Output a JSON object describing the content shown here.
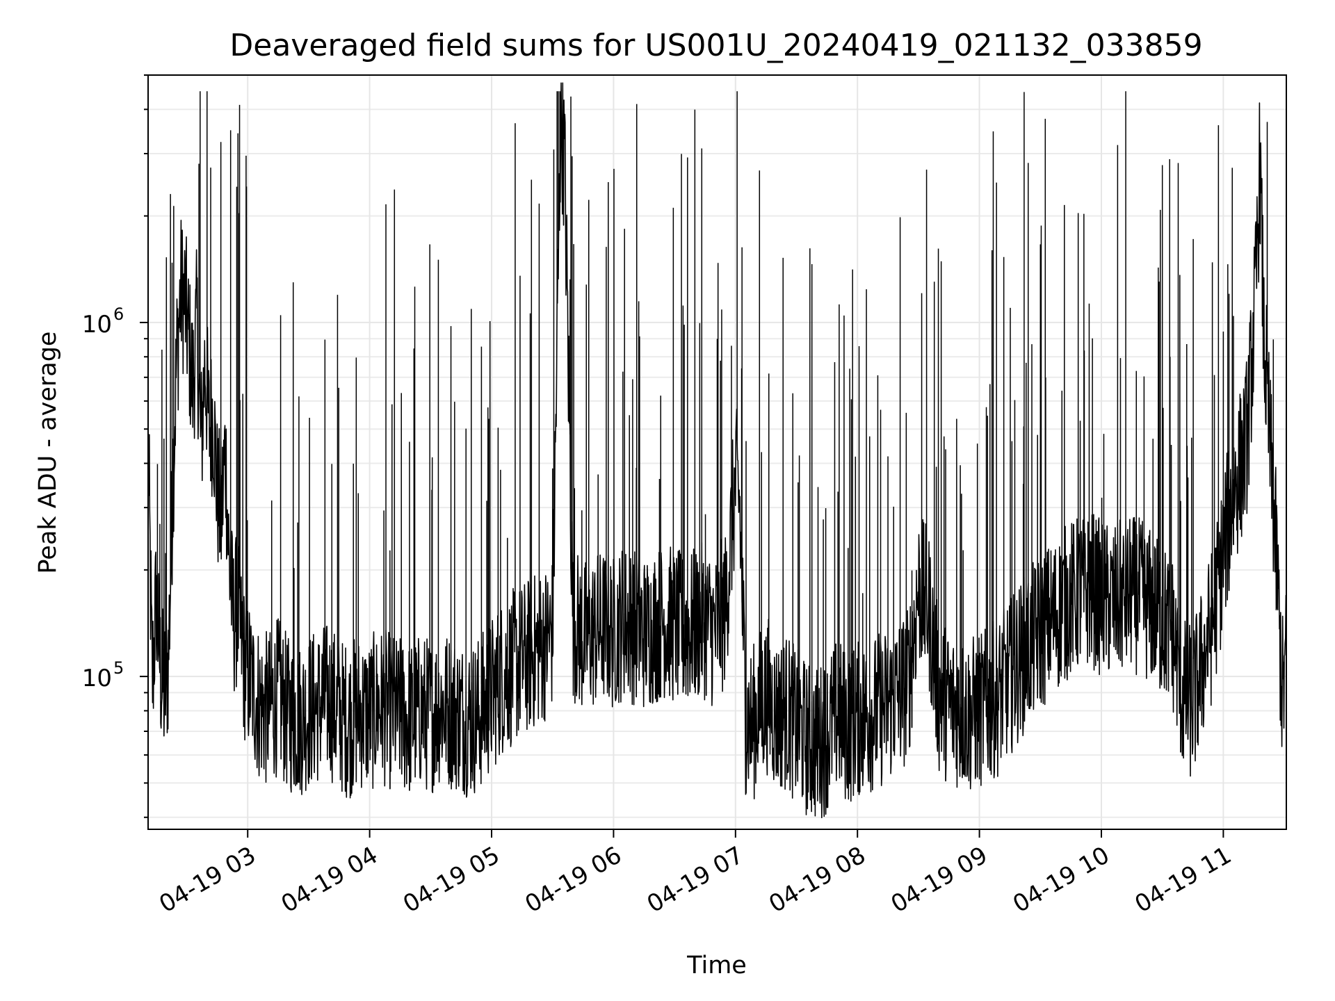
{
  "chart_data": {
    "type": "line",
    "title": "Deaveraged field sums for US001U_20240419_021132_033859",
    "xlabel": "Time",
    "ylabel": "Peak ADU - average",
    "y_scale": "log",
    "ylim": [
      37000,
      5000000
    ],
    "xlim": [
      "2024-04-19 02:11",
      "2024-04-19 11:31"
    ],
    "x_ticks": [
      {
        "t": "2024-04-19 03:00",
        "label": "04-19 03"
      },
      {
        "t": "2024-04-19 04:00",
        "label": "04-19 04"
      },
      {
        "t": "2024-04-19 05:00",
        "label": "04-19 05"
      },
      {
        "t": "2024-04-19 06:00",
        "label": "04-19 06"
      },
      {
        "t": "2024-04-19 07:00",
        "label": "04-19 07"
      },
      {
        "t": "2024-04-19 08:00",
        "label": "04-19 08"
      },
      {
        "t": "2024-04-19 09:00",
        "label": "04-19 09"
      },
      {
        "t": "2024-04-19 10:00",
        "label": "04-19 10"
      },
      {
        "t": "2024-04-19 11:00",
        "label": "04-19 11"
      }
    ],
    "y_ticks": [
      {
        "value": 100000,
        "base": "10",
        "exp": "5"
      },
      {
        "value": 1000000,
        "base": "10",
        "exp": "6"
      }
    ],
    "grid": true,
    "line_color": "#000000",
    "series": [
      {
        "x": [
          "2024-04-19 02:11",
          "2024-04-19 02:13",
          "2024-04-19 02:15",
          "2024-04-19 02:17",
          "2024-04-19 02:19",
          "2024-04-19 02:21",
          "2024-04-19 02:23",
          "2024-04-19 02:25",
          "2024-04-19 02:27",
          "2024-04-19 02:29",
          "2024-04-19 02:31",
          "2024-04-19 02:33",
          "2024-04-19 02:35",
          "2024-04-19 02:37",
          "2024-04-19 02:39",
          "2024-04-19 02:41",
          "2024-04-19 02:43",
          "2024-04-19 02:45",
          "2024-04-19 02:47",
          "2024-04-19 02:49",
          "2024-04-19 02:51",
          "2024-04-19 02:53",
          "2024-04-19 02:55",
          "2024-04-19 02:58",
          "2024-04-19 03:02",
          "2024-04-19 03:06",
          "2024-04-19 03:10",
          "2024-04-19 03:15",
          "2024-04-19 03:20",
          "2024-04-19 03:25",
          "2024-04-19 03:30",
          "2024-04-19 03:35",
          "2024-04-19 03:40",
          "2024-04-19 03:45",
          "2024-04-19 03:50",
          "2024-04-19 03:55",
          "2024-04-19 04:00",
          "2024-04-19 04:05",
          "2024-04-19 04:10",
          "2024-04-19 04:15",
          "2024-04-19 04:20",
          "2024-04-19 04:25",
          "2024-04-19 04:30",
          "2024-04-19 04:35",
          "2024-04-19 04:40",
          "2024-04-19 04:45",
          "2024-04-19 04:50",
          "2024-04-19 04:55",
          "2024-04-19 05:00",
          "2024-04-19 05:05",
          "2024-04-19 05:10",
          "2024-04-19 05:15",
          "2024-04-19 05:20",
          "2024-04-19 05:25",
          "2024-04-19 05:30",
          "2024-04-19 05:34",
          "2024-04-19 05:36",
          "2024-04-19 05:40",
          "2024-04-19 05:45",
          "2024-04-19 05:50",
          "2024-04-19 05:55",
          "2024-04-19 06:00",
          "2024-04-19 06:05",
          "2024-04-19 06:10",
          "2024-04-19 06:15",
          "2024-04-19 06:20",
          "2024-04-19 06:25",
          "2024-04-19 06:30",
          "2024-04-19 06:35",
          "2024-04-19 06:40",
          "2024-04-19 06:45",
          "2024-04-19 06:50",
          "2024-04-19 06:55",
          "2024-04-19 07:00",
          "2024-04-19 07:02",
          "2024-04-19 07:05",
          "2024-04-19 07:08",
          "2024-04-19 07:12",
          "2024-04-19 07:16",
          "2024-04-19 07:20",
          "2024-04-19 07:25",
          "2024-04-19 07:30",
          "2024-04-19 07:35",
          "2024-04-19 07:40",
          "2024-04-19 07:45",
          "2024-04-19 07:50",
          "2024-04-19 07:55",
          "2024-04-19 08:00",
          "2024-04-19 08:05",
          "2024-04-19 08:10",
          "2024-04-19 08:15",
          "2024-04-19 08:20",
          "2024-04-19 08:25",
          "2024-04-19 08:30",
          "2024-04-19 08:35",
          "2024-04-19 08:40",
          "2024-04-19 08:45",
          "2024-04-19 08:50",
          "2024-04-19 08:55",
          "2024-04-19 09:00",
          "2024-04-19 09:05",
          "2024-04-19 09:10",
          "2024-04-19 09:15",
          "2024-04-19 09:20",
          "2024-04-19 09:25",
          "2024-04-19 09:30",
          "2024-04-19 09:35",
          "2024-04-19 09:40",
          "2024-04-19 09:45",
          "2024-04-19 09:50",
          "2024-04-19 09:55",
          "2024-04-19 10:00",
          "2024-04-19 10:05",
          "2024-04-19 10:10",
          "2024-04-19 10:15",
          "2024-04-19 10:20",
          "2024-04-19 10:25",
          "2024-04-19 10:30",
          "2024-04-19 10:35",
          "2024-04-19 10:40",
          "2024-04-19 10:45",
          "2024-04-19 10:50",
          "2024-04-19 10:55",
          "2024-04-19 11:00",
          "2024-04-19 11:05",
          "2024-04-19 11:10",
          "2024-04-19 11:12",
          "2024-04-19 11:14",
          "2024-04-19 11:16",
          "2024-04-19 11:18",
          "2024-04-19 11:20",
          "2024-04-19 11:23",
          "2024-04-19 11:26",
          "2024-04-19 11:29",
          "2024-04-19 11:31"
        ],
        "values": [
          420000,
          85000,
          150000,
          95000,
          80000,
          100000,
          300000,
          700000,
          1100000,
          1050000,
          800000,
          600000,
          900000,
          400000,
          700000,
          450000,
          500000,
          300000,
          250000,
          400000,
          180000,
          130000,
          140000,
          100000,
          85000,
          75000,
          72000,
          80000,
          70000,
          68000,
          72000,
          75000,
          78000,
          70000,
          68000,
          72000,
          70000,
          75000,
          72000,
          70000,
          68000,
          72000,
          70000,
          75000,
          72000,
          70000,
          68000,
          72000,
          80000,
          90000,
          95000,
          100000,
          105000,
          110000,
          120000,
          3500000,
          2500000,
          130000,
          115000,
          120000,
          125000,
          120000,
          130000,
          125000,
          120000,
          125000,
          130000,
          125000,
          120000,
          125000,
          130000,
          120000,
          140000,
          320000,
          280000,
          70000,
          65000,
          75000,
          80000,
          70000,
          72000,
          65000,
          60000,
          58000,
          62000,
          70000,
          65000,
          68000,
          70000,
          72000,
          75000,
          80000,
          85000,
          160000,
          140000,
          80000,
          75000,
          72000,
          70000,
          72000,
          75000,
          80000,
          90000,
          100000,
          110000,
          120000,
          130000,
          140000,
          150000,
          155000,
          160000,
          150000,
          145000,
          150000,
          155000,
          150000,
          140000,
          130000,
          120000,
          80000,
          75000,
          100000,
          130000,
          200000,
          300000,
          380000,
          450000,
          700000,
          1100000,
          2500000,
          800000,
          400000,
          200000,
          80000,
          100000
        ]
      }
    ]
  }
}
